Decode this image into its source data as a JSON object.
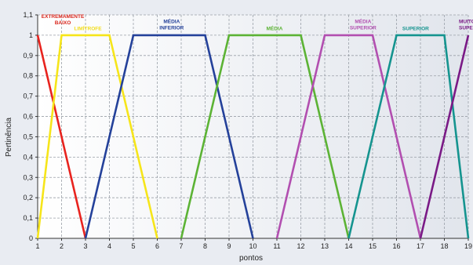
{
  "chart_data": {
    "type": "line",
    "xlabel": "pontos",
    "ylabel": "Pertinência",
    "xlim": [
      1,
      19
    ],
    "ylim": [
      0,
      1.1
    ],
    "x_ticks": [
      "1",
      "2",
      "3",
      "4",
      "5",
      "6",
      "7",
      "8",
      "9",
      "10",
      "11",
      "12",
      "13",
      "14",
      "15",
      "16",
      "17",
      "18",
      "19"
    ],
    "y_ticks": [
      "0",
      "0,1",
      "0,2",
      "0,3",
      "0,4",
      "0,5",
      "0,6",
      "0,7",
      "0,8",
      "0,9",
      "1",
      "1,1"
    ],
    "grid": true,
    "series": [
      {
        "name": "EXTREMAMENTE BAIXO",
        "label_lines": [
          "EXTREMAMENTE",
          "BAIXO"
        ],
        "color": "#e8231e",
        "label_color": "#d9261c",
        "points": [
          [
            1,
            1
          ],
          [
            3,
            0
          ]
        ],
        "label_at": [
          2.05,
          1.085
        ]
      },
      {
        "name": "LIMÍTROFE",
        "label_lines": [
          "LIMÍTROFE"
        ],
        "color": "#f6e51a",
        "label_color": "#f2dd1a",
        "points": [
          [
            1,
            0
          ],
          [
            2,
            1
          ],
          [
            4,
            1
          ],
          [
            6,
            0
          ]
        ],
        "label_at": [
          3.1,
          1.025
        ]
      },
      {
        "name": "MÉDIA INFERIOR",
        "label_lines": [
          "MÉDIA",
          "INFERIOR"
        ],
        "color": "#24419a",
        "label_color": "#24419a",
        "points": [
          [
            3,
            0
          ],
          [
            5,
            1
          ],
          [
            8,
            1
          ],
          [
            10,
            0
          ]
        ],
        "label_at": [
          6.6,
          1.06
        ]
      },
      {
        "name": "MÉDIA",
        "label_lines": [
          "MÉDIA"
        ],
        "color": "#5cb335",
        "label_color": "#5cb335",
        "points": [
          [
            7,
            0
          ],
          [
            9,
            1
          ],
          [
            12,
            1
          ],
          [
            14,
            0
          ]
        ],
        "label_at": [
          10.9,
          1.025
        ]
      },
      {
        "name": "MÉDIA SUPERIOR",
        "label_lines": [
          "MÉDIA",
          "SUPERIOR"
        ],
        "color": "#b24fb0",
        "label_color": "#b24fb0",
        "points": [
          [
            11,
            0
          ],
          [
            13,
            1
          ],
          [
            15,
            1
          ],
          [
            17,
            0
          ]
        ],
        "label_at": [
          14.6,
          1.06
        ]
      },
      {
        "name": "SUPERIOR",
        "label_lines": [
          "SUPERIOR"
        ],
        "color": "#15948f",
        "label_color": "#15948f",
        "points": [
          [
            14,
            0
          ],
          [
            16,
            1
          ],
          [
            18,
            1
          ],
          [
            19,
            0
          ]
        ],
        "label_at": [
          16.8,
          1.025
        ]
      },
      {
        "name": "MUITO SUPERIOR",
        "label_lines": [
          "MUITO",
          "SUPERIOR"
        ],
        "color": "#7a1a86",
        "label_color": "#7a1a86",
        "points": [
          [
            17,
            0
          ],
          [
            19,
            1
          ]
        ],
        "label_at": [
          19.0,
          1.06
        ]
      }
    ]
  }
}
